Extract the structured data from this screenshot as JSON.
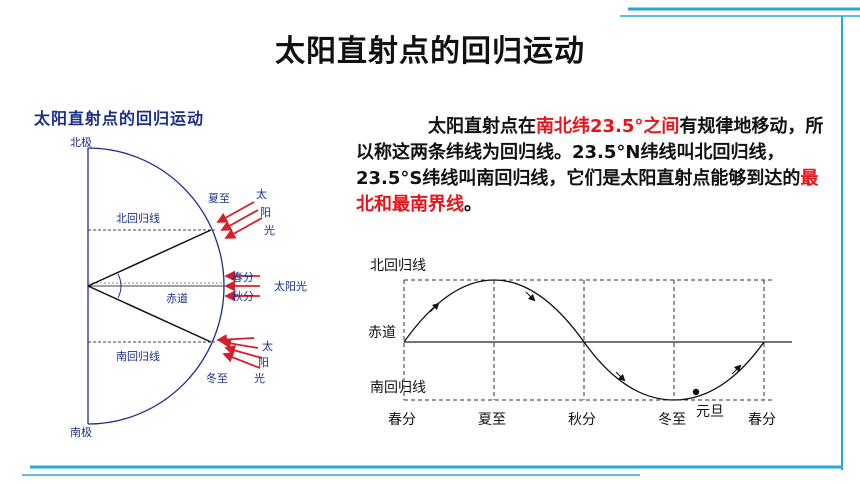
{
  "slide": {
    "title": "太阳直射点的回归运动",
    "paragraph": {
      "p1": "太阳直射点在",
      "r1": "南北纬23.5°之间",
      "p2": "有规律地移动，所以称这两条纬线为回归线。23.5°N纬线叫北回归线，23.5°S纬线叫南回归线，它们是太阳直射点能够到达的",
      "r2": "最北和最南界线",
      "p3": "。"
    }
  },
  "left_diagram": {
    "title": "太阳直射点的回归运动",
    "north_pole": "北极",
    "south_pole": "南极",
    "tropic_north": "北回归线",
    "equator": "赤道",
    "tropic_south": "南回归线",
    "summer_solstice": "夏至",
    "winter_solstice": "冬至",
    "spring_equinox": "春分",
    "autumn_equinox": "秋分",
    "sunlight_top": [
      "太",
      "阳",
      "光"
    ],
    "sunlight_mid": "太阳光",
    "sunlight_bottom": [
      "太",
      "阳",
      "光"
    ],
    "colors": {
      "text": "#1a2f8a",
      "arrow": "#d4202a"
    }
  },
  "right_chart": {
    "label_north": "北回归线",
    "label_equator": "赤道",
    "label_south": "南回归线",
    "x_labels": [
      "春分",
      "夏至",
      "秋分",
      "冬至",
      "春分"
    ],
    "new_year": "元旦"
  },
  "colors": {
    "accent": "#2aa7d9",
    "highlight": "#e8141b"
  }
}
